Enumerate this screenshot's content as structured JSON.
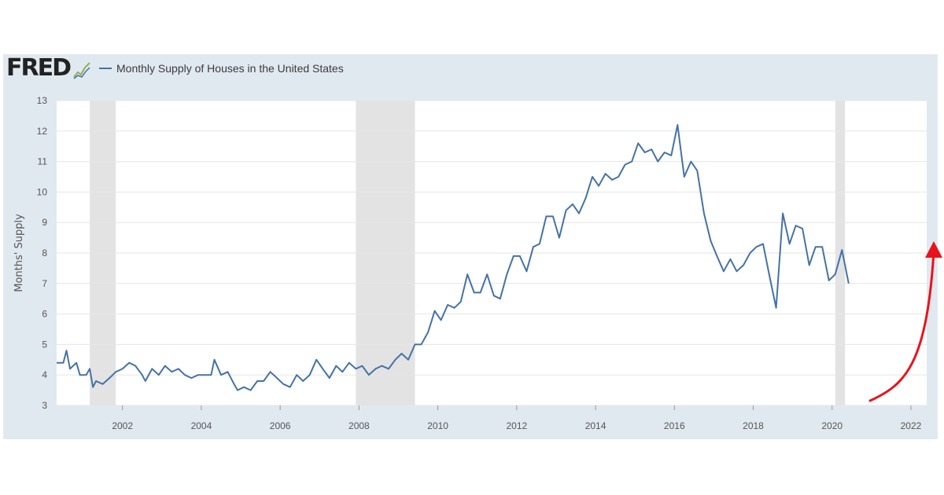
{
  "logo": {
    "text": "FRED"
  },
  "icons": {
    "logo_graph": "line-graph-icon",
    "highlight_arrow": "red-arrow-icon"
  },
  "colors": {
    "series": "#4572a7",
    "recession": "#e3e3e3",
    "frame": "#e1e9f0",
    "arrow": "#e8141c",
    "grid": "#e6e6e6"
  },
  "chart_data": {
    "type": "line",
    "title": "",
    "xlabel": "",
    "ylabel": "Months' Supply",
    "ylim": [
      3,
      13
    ],
    "xlim": [
      2000.33,
      2022.4
    ],
    "yticks": [
      3,
      4,
      5,
      6,
      7,
      8,
      9,
      10,
      11,
      12,
      13
    ],
    "xticks": [
      "2002",
      "2004",
      "2006",
      "2008",
      "2010",
      "2012",
      "2014",
      "2016",
      "2018",
      "2020",
      "2022"
    ],
    "grid": true,
    "legend_position": "top-left",
    "recession_shading": [
      {
        "start": 2001.17,
        "end": 2001.83
      },
      {
        "start": 2007.92,
        "end": 2009.42
      },
      {
        "start": 2020.08,
        "end": 2020.33
      }
    ],
    "series": [
      {
        "name": "Monthly Supply of Houses in the United States",
        "points": [
          [
            2000.33,
            4.4
          ],
          [
            2000.5,
            4.4
          ],
          [
            2000.58,
            4.8
          ],
          [
            2000.67,
            4.2
          ],
          [
            2000.83,
            4.4
          ],
          [
            2000.92,
            4.0
          ],
          [
            2001.08,
            4.0
          ],
          [
            2001.17,
            4.2
          ],
          [
            2001.25,
            3.6
          ],
          [
            2001.33,
            3.8
          ],
          [
            2001.5,
            3.7
          ],
          [
            2001.67,
            3.9
          ],
          [
            2001.83,
            4.1
          ],
          [
            2002.0,
            4.2
          ],
          [
            2002.17,
            4.4
          ],
          [
            2002.33,
            4.3
          ],
          [
            2002.5,
            4.0
          ],
          [
            2002.58,
            3.8
          ],
          [
            2002.75,
            4.2
          ],
          [
            2002.92,
            4.0
          ],
          [
            2003.08,
            4.3
          ],
          [
            2003.25,
            4.1
          ],
          [
            2003.42,
            4.2
          ],
          [
            2003.58,
            4.0
          ],
          [
            2003.75,
            3.9
          ],
          [
            2003.92,
            4.0
          ],
          [
            2004.08,
            4.0
          ],
          [
            2004.25,
            4.0
          ],
          [
            2004.33,
            4.5
          ],
          [
            2004.5,
            4.0
          ],
          [
            2004.67,
            4.1
          ],
          [
            2004.83,
            3.7
          ],
          [
            2004.92,
            3.5
          ],
          [
            2005.08,
            3.6
          ],
          [
            2005.25,
            3.5
          ],
          [
            2005.42,
            3.8
          ],
          [
            2005.58,
            3.8
          ],
          [
            2005.75,
            4.1
          ],
          [
            2005.92,
            3.9
          ],
          [
            2006.08,
            3.7
          ],
          [
            2006.25,
            3.6
          ],
          [
            2006.42,
            4.0
          ],
          [
            2006.58,
            3.8
          ],
          [
            2006.75,
            4.0
          ],
          [
            2006.92,
            4.5
          ],
          [
            2007.08,
            4.2
          ],
          [
            2007.25,
            3.9
          ],
          [
            2007.42,
            4.3
          ],
          [
            2007.58,
            4.1
          ],
          [
            2007.75,
            4.4
          ],
          [
            2007.92,
            4.2
          ],
          [
            2008.08,
            4.3
          ],
          [
            2008.25,
            4.0
          ],
          [
            2008.42,
            4.2
          ],
          [
            2008.58,
            4.3
          ],
          [
            2008.75,
            4.2
          ],
          [
            2008.92,
            4.5
          ],
          [
            2009.08,
            4.7
          ],
          [
            2009.25,
            4.5
          ],
          [
            2009.42,
            5.0
          ],
          [
            2009.58,
            5.0
          ],
          [
            2009.75,
            5.4
          ],
          [
            2009.92,
            6.1
          ],
          [
            2010.08,
            5.8
          ],
          [
            2010.25,
            6.3
          ],
          [
            2010.42,
            6.2
          ],
          [
            2010.58,
            6.4
          ],
          [
            2010.75,
            7.3
          ],
          [
            2010.92,
            6.7
          ],
          [
            2011.08,
            6.7
          ],
          [
            2011.25,
            7.3
          ],
          [
            2011.42,
            6.6
          ],
          [
            2011.58,
            6.5
          ],
          [
            2011.75,
            7.3
          ],
          [
            2011.92,
            7.9
          ],
          [
            2012.08,
            7.9
          ],
          [
            2012.25,
            7.4
          ],
          [
            2012.42,
            8.2
          ],
          [
            2012.58,
            8.3
          ],
          [
            2012.75,
            9.2
          ],
          [
            2012.92,
            9.2
          ],
          [
            2013.08,
            8.5
          ],
          [
            2013.25,
            9.4
          ],
          [
            2013.42,
            9.6
          ],
          [
            2013.58,
            9.3
          ],
          [
            2013.75,
            9.8
          ],
          [
            2013.92,
            10.5
          ],
          [
            2014.08,
            10.2
          ],
          [
            2014.25,
            10.6
          ],
          [
            2014.42,
            10.4
          ],
          [
            2014.58,
            10.5
          ],
          [
            2014.75,
            10.9
          ],
          [
            2014.92,
            11.0
          ],
          [
            2015.08,
            11.6
          ],
          [
            2015.25,
            11.3
          ],
          [
            2015.42,
            11.4
          ],
          [
            2015.58,
            11.0
          ],
          [
            2015.75,
            11.3
          ],
          [
            2015.92,
            11.2
          ],
          [
            2016.08,
            12.2
          ],
          [
            2016.25,
            10.5
          ],
          [
            2016.42,
            11.0
          ],
          [
            2016.58,
            10.7
          ],
          [
            2016.75,
            9.3
          ],
          [
            2016.92,
            8.4
          ],
          [
            2017.08,
            7.9
          ],
          [
            2017.25,
            7.4
          ],
          [
            2017.42,
            7.8
          ],
          [
            2017.58,
            7.4
          ],
          [
            2017.75,
            7.6
          ],
          [
            2017.92,
            8.0
          ],
          [
            2018.08,
            8.2
          ],
          [
            2018.25,
            8.3
          ],
          [
            2018.42,
            7.2
          ],
          [
            2018.58,
            6.2
          ],
          [
            2018.75,
            9.3
          ],
          [
            2018.92,
            8.3
          ],
          [
            2019.08,
            8.9
          ],
          [
            2019.25,
            8.8
          ],
          [
            2019.42,
            7.6
          ],
          [
            2019.58,
            8.2
          ],
          [
            2019.75,
            8.2
          ],
          [
            2019.92,
            7.1
          ],
          [
            2020.08,
            7.3
          ],
          [
            2020.25,
            8.1
          ],
          [
            2020.42,
            7.0
          ]
        ]
      }
    ]
  }
}
